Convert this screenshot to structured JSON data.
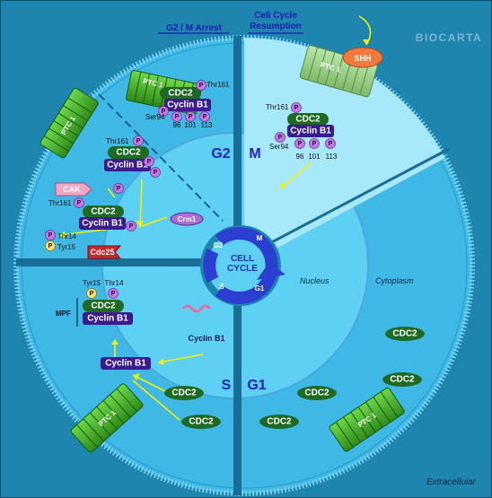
{
  "header": {
    "arrest": "G2 / M Arrest",
    "resumption_line1": "Cell Cycle",
    "resumption_line2": "Resumption",
    "brand": "BIOCARTA"
  },
  "regions": {
    "nucleus": "Nucleus",
    "cytoplasm": "Cytoplasm",
    "extracellular": "Extracellular"
  },
  "phases": {
    "g2": "G2",
    "m": "M",
    "s": "S",
    "g1": "G1"
  },
  "cycle": {
    "line1": "CELL",
    "line2": "CYCLE",
    "g2": "G2",
    "m": "M",
    "s": "S",
    "g1": "G1"
  },
  "proteins": {
    "ptc1": "PTC 1",
    "shh": "SHH",
    "cdc2": "CDC2",
    "cyclin_b1": "Cyclin B1",
    "cak": "CAK",
    "crm1": "Crm1",
    "cdc25": "Cdc25",
    "mpf": "MPF",
    "p": "P"
  },
  "sites": {
    "thr161": "Thr161",
    "ser94": "Ser94",
    "s96": "96",
    "s101": "101",
    "s113": "113",
    "thr14": "Thr14",
    "tyr15": "Tyr15"
  },
  "colors": {
    "background": "#1e86ae",
    "cell": "#3fb8e6",
    "nucleus": "#5ed0f3",
    "divider": "#186e96",
    "cdc2": "#1f6a23",
    "cyclin": "#3a1c8e",
    "arrow": "#f4f000"
  }
}
